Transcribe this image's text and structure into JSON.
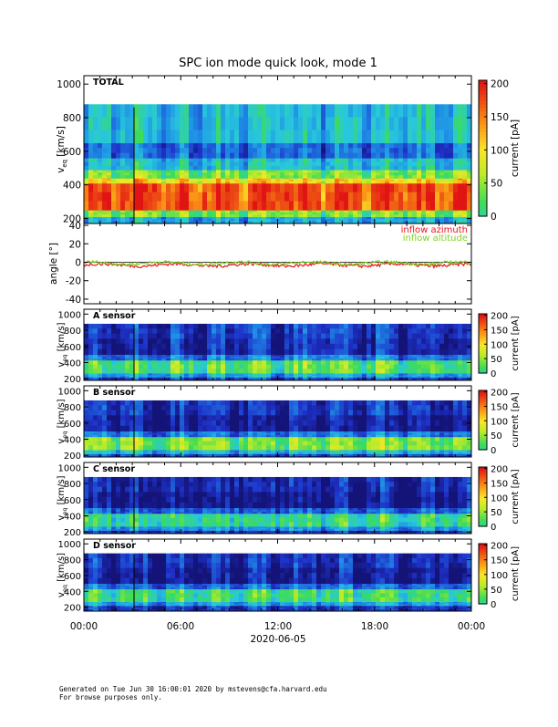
{
  "chart_data": [
    {
      "name": "total",
      "type": "heatmap",
      "title": "SPC ion mode quick look, mode 1",
      "panel_label": "TOTAL",
      "ylabel": "v",
      "ylabel_sub": "eq",
      "ylabel_unit": "[km/s]",
      "ylim": [
        170,
        1050
      ],
      "yticks": [
        200,
        400,
        600,
        800,
        1000
      ],
      "colorbar": {
        "label": "current [pA]",
        "range": [
          0,
          205
        ],
        "ticks": [
          0,
          50,
          100,
          150,
          200
        ]
      },
      "bands": [
        {
          "from": 170,
          "to": 210,
          "level": 0.3
        },
        {
          "from": 210,
          "to": 250,
          "level": 0.55
        },
        {
          "from": 250,
          "to": 410,
          "level": 0.92
        },
        {
          "from": 410,
          "to": 440,
          "level": 0.72
        },
        {
          "from": 440,
          "to": 490,
          "level": 0.55
        },
        {
          "from": 490,
          "to": 560,
          "level": 0.35
        },
        {
          "from": 560,
          "to": 650,
          "level": 0.18
        },
        {
          "from": 650,
          "to": 880,
          "level": 0.34
        },
        {
          "from": 880,
          "to": 1050,
          "level": null
        }
      ]
    },
    {
      "name": "angle",
      "type": "line",
      "ylabel": "angle [°]",
      "ylim": [
        -45,
        42
      ],
      "yticks": [
        -40,
        -20,
        0,
        20,
        40
      ],
      "series": [
        {
          "name": "inflow azimuth",
          "color": "#e8141e",
          "mean": -3
        },
        {
          "name": "inflow altitude",
          "color": "#7ed321",
          "mean": -1
        }
      ]
    },
    {
      "name": "a_sensor",
      "type": "heatmap",
      "panel_label": "A sensor",
      "ylabel": "v",
      "ylabel_sub": "eq",
      "ylabel_unit": "[km/s]",
      "ylim": [
        180,
        1060
      ],
      "yticks": [
        200,
        400,
        600,
        800,
        1000
      ],
      "colorbar": {
        "label": "current [pA]",
        "range": [
          0,
          205
        ],
        "ticks": [
          0,
          50,
          100,
          150,
          200
        ]
      },
      "bands": [
        {
          "from": 180,
          "to": 220,
          "level": 0.12
        },
        {
          "from": 220,
          "to": 270,
          "level": 0.3
        },
        {
          "from": 270,
          "to": 430,
          "level": 0.5
        },
        {
          "from": 430,
          "to": 500,
          "level": 0.22
        },
        {
          "from": 500,
          "to": 700,
          "level": 0.06
        },
        {
          "from": 700,
          "to": 880,
          "level": 0.1
        },
        {
          "from": 880,
          "to": 1060,
          "level": null
        }
      ]
    },
    {
      "name": "b_sensor",
      "type": "heatmap",
      "panel_label": "B sensor",
      "ylabel": "v",
      "ylabel_sub": "eq",
      "ylabel_unit": "[km/s]",
      "ylim": [
        180,
        1060
      ],
      "yticks": [
        200,
        400,
        600,
        800,
        1000
      ],
      "colorbar": {
        "label": "current [pA]",
        "range": [
          0,
          205
        ],
        "ticks": [
          0,
          50,
          100,
          150,
          200
        ]
      },
      "bands": [
        {
          "from": 180,
          "to": 220,
          "level": 0.14
        },
        {
          "from": 220,
          "to": 270,
          "level": 0.34
        },
        {
          "from": 270,
          "to": 430,
          "level": 0.55
        },
        {
          "from": 430,
          "to": 500,
          "level": 0.22
        },
        {
          "from": 500,
          "to": 700,
          "level": 0.03
        },
        {
          "from": 700,
          "to": 880,
          "level": 0.09
        },
        {
          "from": 880,
          "to": 1060,
          "level": null
        }
      ]
    },
    {
      "name": "c_sensor",
      "type": "heatmap",
      "panel_label": "C sensor",
      "ylabel": "v",
      "ylabel_sub": "eq",
      "ylabel_unit": "[km/s]",
      "ylim": [
        180,
        1060
      ],
      "yticks": [
        200,
        400,
        600,
        800,
        1000
      ],
      "colorbar": {
        "label": "current [pA]",
        "range": [
          0,
          205
        ],
        "ticks": [
          0,
          50,
          100,
          150,
          200
        ]
      },
      "bands": [
        {
          "from": 180,
          "to": 220,
          "level": 0.1
        },
        {
          "from": 220,
          "to": 270,
          "level": 0.28
        },
        {
          "from": 270,
          "to": 430,
          "level": 0.45
        },
        {
          "from": 430,
          "to": 500,
          "level": 0.18
        },
        {
          "from": 500,
          "to": 700,
          "level": 0.02
        },
        {
          "from": 700,
          "to": 880,
          "level": 0.07
        },
        {
          "from": 880,
          "to": 1060,
          "level": null
        }
      ]
    },
    {
      "name": "d_sensor",
      "type": "heatmap",
      "panel_label": "D sensor",
      "ylabel": "v",
      "ylabel_sub": "eq",
      "ylabel_unit": "[km/s]",
      "ylim": [
        150,
        1060
      ],
      "yticks": [
        200,
        400,
        600,
        800,
        1000
      ],
      "colorbar": {
        "label": "current [pA]",
        "range": [
          0,
          205
        ],
        "ticks": [
          0,
          50,
          100,
          150,
          200
        ]
      },
      "bands": [
        {
          "from": 150,
          "to": 220,
          "level": 0.1
        },
        {
          "from": 220,
          "to": 270,
          "level": 0.3
        },
        {
          "from": 270,
          "to": 430,
          "level": 0.47
        },
        {
          "from": 430,
          "to": 500,
          "level": 0.2
        },
        {
          "from": 500,
          "to": 700,
          "level": 0.03
        },
        {
          "from": 700,
          "to": 880,
          "level": 0.08
        },
        {
          "from": 880,
          "to": 1060,
          "level": null
        }
      ]
    }
  ],
  "time_axis": {
    "ticks": [
      "00:00",
      "06:00",
      "12:00",
      "18:00",
      "00:00"
    ],
    "date": "2020-06-05"
  },
  "footer": {
    "line1": "Generated on Tue Jun 30 16:00:01 2020 by mstevens@cfa.harvard.edu",
    "line2": "For browse purposes only."
  }
}
